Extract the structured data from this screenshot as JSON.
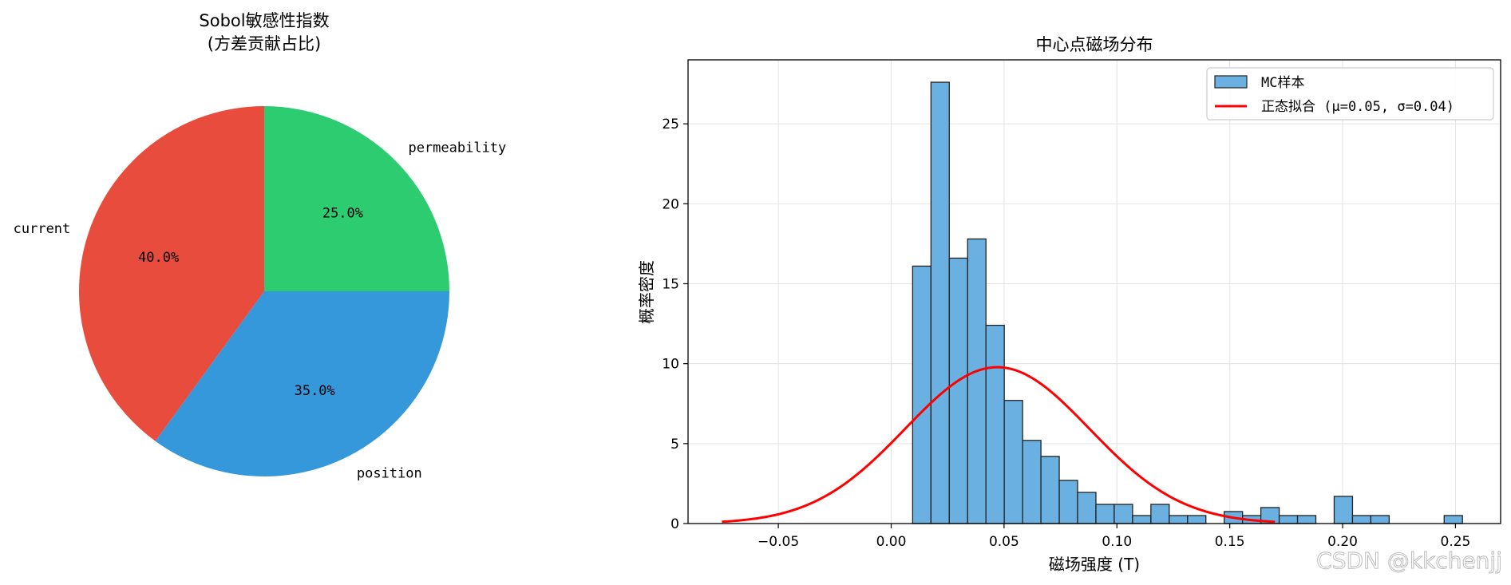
{
  "chart_data": [
    {
      "type": "pie",
      "title_line1": "Sobol敏感性指数",
      "title_line2": "(方差贡献占比)",
      "slices": [
        {
          "label": "permeability",
          "value": 25.0,
          "pct_label": "25.0%",
          "color": "#2ecc71"
        },
        {
          "label": "position",
          "value": 35.0,
          "pct_label": "35.0%",
          "color": "#3498db"
        },
        {
          "label": "current",
          "value": 40.0,
          "pct_label": "40.0%",
          "color": "#e74c3c"
        }
      ],
      "start_angle_deg": 90,
      "direction": "clockwise"
    },
    {
      "type": "histogram",
      "title": "中心点磁场分布",
      "xlabel": "磁场强度 (T)",
      "ylabel": "概率密度",
      "xlim": [
        -0.09,
        0.27
      ],
      "ylim": [
        0,
        29
      ],
      "xticks": [
        -0.05,
        0.0,
        0.05,
        0.1,
        0.15,
        0.2,
        0.25
      ],
      "xtick_labels": [
        "−0.05",
        "0.00",
        "0.05",
        "0.10",
        "0.15",
        "0.20",
        "0.25"
      ],
      "yticks": [
        0,
        5,
        10,
        15,
        20,
        25
      ],
      "ytick_labels": [
        "0",
        "5",
        "10",
        "15",
        "20",
        "25"
      ],
      "grid": true,
      "bin_start": 0.0095,
      "bin_width": 0.00812,
      "bin_values": [
        16.1,
        27.6,
        16.6,
        17.8,
        12.4,
        7.7,
        5.2,
        4.2,
        2.7,
        1.95,
        1.2,
        1.2,
        0.5,
        1.2,
        0.5,
        0.5,
        0,
        0.75,
        0.5,
        1.0,
        0.5,
        0.5,
        0,
        1.7,
        0.5,
        0.5,
        0,
        0,
        0,
        0.5
      ],
      "bar_color": "#6ab0e0",
      "bar_edge_color": "#222222",
      "fit": {
        "mu": 0.047,
        "sigma": 0.0408,
        "x_range": [
          -0.075,
          0.17
        ],
        "color": "#ff0000"
      },
      "legend": {
        "position": "top-right",
        "entries": [
          "MC样本",
          "正态拟合 (μ=0.05, σ=0.04)"
        ]
      }
    }
  ],
  "watermark": "CSDN @kkchenjj"
}
